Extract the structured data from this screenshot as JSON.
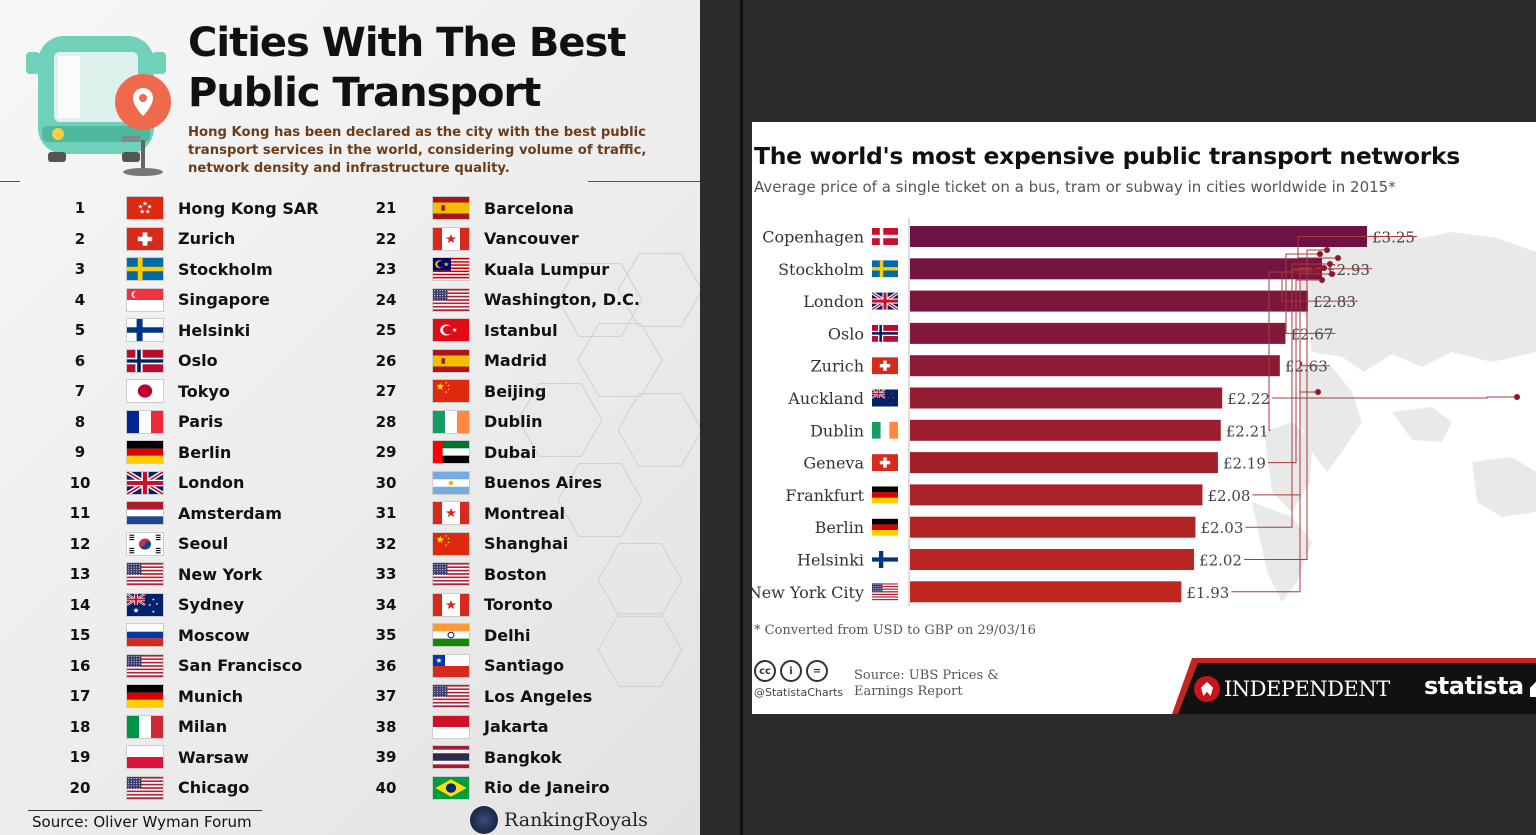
{
  "left": {
    "title_line1": "Cities With The Best",
    "title_line2": "Public Transport",
    "subtitle": "Hong Kong has been declared as the city with the best public transport services in the world, considering volume of traffic, network density and infrastructure quality.",
    "source": "Source: Oliver Wyman Forum",
    "brand": "RankingRoyals",
    "icons": {
      "bus": "bus-icon",
      "pin": "location-pin-icon",
      "brand": "globe-icon"
    },
    "rankings": [
      {
        "rank": "1",
        "city": "Hong Kong SAR",
        "flag": "hk"
      },
      {
        "rank": "2",
        "city": "Zurich",
        "flag": "ch"
      },
      {
        "rank": "3",
        "city": "Stockholm",
        "flag": "se"
      },
      {
        "rank": "4",
        "city": "Singapore",
        "flag": "sg"
      },
      {
        "rank": "5",
        "city": "Helsinki",
        "flag": "fi"
      },
      {
        "rank": "6",
        "city": "Oslo",
        "flag": "no"
      },
      {
        "rank": "7",
        "city": "Tokyo",
        "flag": "jp"
      },
      {
        "rank": "8",
        "city": "Paris",
        "flag": "fr"
      },
      {
        "rank": "9",
        "city": "Berlin",
        "flag": "de"
      },
      {
        "rank": "10",
        "city": "London",
        "flag": "gb"
      },
      {
        "rank": "11",
        "city": "Amsterdam",
        "flag": "nl"
      },
      {
        "rank": "12",
        "city": "Seoul",
        "flag": "kr"
      },
      {
        "rank": "13",
        "city": "New York",
        "flag": "us"
      },
      {
        "rank": "14",
        "city": "Sydney",
        "flag": "au"
      },
      {
        "rank": "15",
        "city": "Moscow",
        "flag": "ru"
      },
      {
        "rank": "16",
        "city": "San Francisco",
        "flag": "us"
      },
      {
        "rank": "17",
        "city": "Munich",
        "flag": "de"
      },
      {
        "rank": "18",
        "city": "Milan",
        "flag": "it"
      },
      {
        "rank": "19",
        "city": "Warsaw",
        "flag": "pl"
      },
      {
        "rank": "20",
        "city": "Chicago",
        "flag": "us"
      },
      {
        "rank": "21",
        "city": "Barcelona",
        "flag": "es"
      },
      {
        "rank": "22",
        "city": "Vancouver",
        "flag": "ca"
      },
      {
        "rank": "23",
        "city": "Kuala Lumpur",
        "flag": "my"
      },
      {
        "rank": "24",
        "city": "Washington, D.C.",
        "flag": "us"
      },
      {
        "rank": "25",
        "city": "Istanbul",
        "flag": "tr"
      },
      {
        "rank": "26",
        "city": "Madrid",
        "flag": "es"
      },
      {
        "rank": "27",
        "city": "Beijing",
        "flag": "cn"
      },
      {
        "rank": "28",
        "city": "Dublin",
        "flag": "ie"
      },
      {
        "rank": "29",
        "city": "Dubai",
        "flag": "ae"
      },
      {
        "rank": "30",
        "city": "Buenos Aires",
        "flag": "ar"
      },
      {
        "rank": "31",
        "city": "Montreal",
        "flag": "ca"
      },
      {
        "rank": "32",
        "city": "Shanghai",
        "flag": "cn"
      },
      {
        "rank": "33",
        "city": "Boston",
        "flag": "us"
      },
      {
        "rank": "34",
        "city": "Toronto",
        "flag": "ca"
      },
      {
        "rank": "35",
        "city": "Delhi",
        "flag": "in"
      },
      {
        "rank": "36",
        "city": "Santiago",
        "flag": "cl"
      },
      {
        "rank": "37",
        "city": "Los Angeles",
        "flag": "us"
      },
      {
        "rank": "38",
        "city": "Jakarta",
        "flag": "id"
      },
      {
        "rank": "39",
        "city": "Bangkok",
        "flag": "th"
      },
      {
        "rank": "40",
        "city": "Rio de Janeiro",
        "flag": "br"
      }
    ]
  },
  "chart_data": {
    "type": "bar",
    "orientation": "horizontal",
    "title": "The world's most expensive public transport networks",
    "subtitle": "Average price of a single ticket on a bus, tram or subway in cities worldwide in 2015*",
    "categories": [
      "Copenhagen",
      "Stockholm",
      "London",
      "Oslo",
      "Zurich",
      "Auckland",
      "Dublin",
      "Geneva",
      "Frankfurt",
      "Berlin",
      "Helsinki",
      "New York City"
    ],
    "flags": [
      "dk",
      "se",
      "gb",
      "no",
      "ch",
      "nz",
      "ie",
      "ch",
      "de",
      "de",
      "fi",
      "us"
    ],
    "values": [
      3.25,
      2.93,
      2.83,
      2.67,
      2.63,
      2.22,
      2.21,
      2.19,
      2.08,
      2.03,
      2.02,
      1.93
    ],
    "value_labels": [
      "£3.25",
      "£2.93",
      "£2.83",
      "£2.67",
      "£2.63",
      "£2.22",
      "£2.21",
      "£2.19",
      "£2.08",
      "£2.03",
      "£2.02",
      "£1.93"
    ],
    "colors": {
      "start": "#6e1244",
      "end": "#c0281f"
    },
    "xlim": [
      0,
      3.25
    ],
    "grid": false,
    "legend": "none"
  },
  "chart_footer": {
    "footnote": "* Converted from USD to GBP on 29/03/16",
    "handle": "@StatistaCharts",
    "source": "Source: UBS Prices & Earnings Report",
    "cc_icons": [
      "cc",
      "i",
      "="
    ],
    "publisher": "INDEPENDENT",
    "brand": "statista"
  }
}
